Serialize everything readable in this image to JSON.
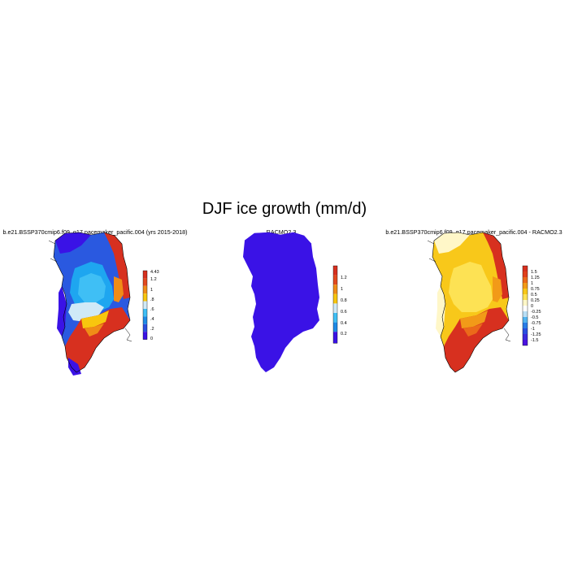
{
  "title": "DJF ice growth (mm/d)",
  "panels": [
    {
      "title": "b.e21.BSSP370cmip6.f09_g17.pacemaker_pacific.004 (yrs 2015-2018)",
      "colorbar": {
        "labels": [
          "4.43",
          "1.2",
          "1",
          ".8",
          ".6",
          ".4",
          ".2",
          "0"
        ],
        "colors": [
          "#d7301f",
          "#e34a1f",
          "#f08c17",
          "#f8c60e",
          "#cfe9f7",
          "#3fbff5",
          "#1e8ae6",
          "#2a4fe0",
          "#3a12e6"
        ]
      }
    },
    {
      "title": "RACMO2.3",
      "colorbar": {
        "labels": [
          "1.2",
          "1",
          "0.8",
          "0.6",
          "0.4",
          "0.2"
        ],
        "colors": [
          "#d7301f",
          "#e34a1f",
          "#f08c17",
          "#f8c60e",
          "#cfe9f7",
          "#3fbff5",
          "#1e8ae6",
          "#3a12e6"
        ]
      }
    },
    {
      "title": "b.e21.BSSP370cmip6.f09_g17.pacemaker_pacific.004 - RACMO2.3",
      "colorbar": {
        "labels": [
          "1.5",
          "1.25",
          "1",
          "0.75",
          "0.5",
          "0.25",
          "0",
          "-0.25",
          "-0.5",
          "-0.75",
          "-1",
          "-1.25",
          "-1.5"
        ],
        "colors": [
          "#d7301f",
          "#e0401c",
          "#eb6a1a",
          "#f29a18",
          "#f8c81a",
          "#fde254",
          "#fff7c8",
          "#ffffff",
          "#b9def5",
          "#52b4f0",
          "#2a7de6",
          "#2a4fe0",
          "#3a2bdc",
          "#4a12e0"
        ]
      }
    }
  ]
}
